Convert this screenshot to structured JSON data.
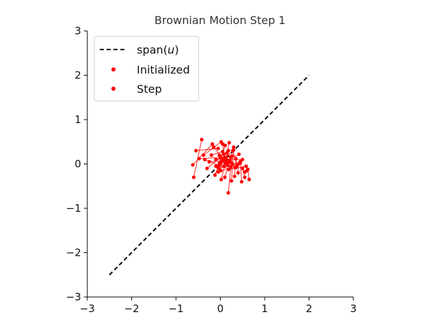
{
  "chart_data": {
    "type": "scatter",
    "title": "Brownian Motion Step 1",
    "xlabel": "",
    "ylabel": "",
    "xlim": [
      -3,
      3
    ],
    "ylim": [
      -3,
      3
    ],
    "xticks": [
      -3,
      -2,
      -1,
      0,
      1,
      2,
      3
    ],
    "yticks": [
      -3,
      -2,
      -1,
      0,
      1,
      2,
      3
    ],
    "xtick_labels": [
      "−3",
      "−2",
      "−1",
      "0",
      "1",
      "2",
      "3"
    ],
    "ytick_labels": [
      "−3",
      "−2",
      "−1",
      "0",
      "1",
      "2",
      "3"
    ],
    "grid": false,
    "legend_placement": "top-left",
    "colors": {
      "points": "#ff0000",
      "line": "#000000",
      "axis": "#000000"
    },
    "series": [
      {
        "name": "span(u)",
        "kind": "dashed-line",
        "x": [
          -2.5,
          2.0
        ],
        "y": [
          -2.5,
          2.0
        ]
      },
      {
        "name": "Initialized",
        "kind": "points",
        "x": [
          -0.42,
          -0.18,
          -0.05,
          0.02,
          0.05,
          0.08,
          0.11,
          0.14,
          0.18,
          0.22,
          0.26,
          0.3,
          0.35,
          0.4,
          0.45,
          0.5,
          0.55,
          0.62,
          -0.1,
          0.0,
          0.04,
          0.09,
          0.12,
          0.17,
          0.2,
          0.24,
          0.28,
          0.33,
          0.38,
          -0.03,
          0.01,
          0.06,
          0.1,
          0.15,
          0.19,
          0.23,
          -0.08,
          -0.02
        ],
        "y": [
          0.55,
          0.45,
          0.35,
          0.5,
          0.28,
          0.22,
          0.42,
          0.1,
          0.3,
          0.05,
          0.18,
          0.38,
          0.12,
          0.0,
          0.05,
          -0.1,
          -0.18,
          -0.12,
          0.1,
          0.0,
          0.06,
          -0.05,
          0.02,
          -0.02,
          0.08,
          -0.06,
          0.0,
          -0.08,
          -0.03,
          -0.1,
          -0.15,
          0.12,
          0.15,
          0.04,
          -0.12,
          0.16,
          -0.05,
          0.02
        ]
      },
      {
        "name": "Step",
        "kind": "points-with-segments",
        "x": [
          -0.6,
          -0.62,
          -0.55,
          -0.38,
          -0.2,
          -0.3,
          -0.12,
          -0.05,
          0.02,
          0.1,
          0.18,
          0.25,
          0.32,
          0.4,
          0.48,
          0.55,
          0.6,
          0.65,
          0.5,
          0.42,
          0.3,
          0.2,
          0.05,
          -0.15,
          -0.25,
          -0.1,
          0.0,
          0.15,
          0.28,
          0.45,
          0.58,
          0.35,
          0.12,
          -0.02,
          -0.35,
          -0.48
        ],
        "y": [
          -0.3,
          -0.02,
          0.3,
          0.2,
          0.2,
          -0.1,
          -0.25,
          -0.18,
          -0.35,
          -0.3,
          -0.65,
          -0.38,
          -0.28,
          -0.2,
          -0.4,
          -0.3,
          -0.15,
          -0.35,
          0.1,
          0.22,
          0.32,
          0.48,
          0.45,
          0.38,
          0.05,
          -0.05,
          0.15,
          0.25,
          0.3,
          0.02,
          -0.05,
          -0.08,
          0.08,
          0.2,
          0.1,
          0.12
        ]
      }
    ],
    "legend": [
      {
        "label_text": "span(",
        "label_italic": "u",
        "label_close": ")"
      },
      {
        "label": "Initialized"
      },
      {
        "label": "Step"
      }
    ]
  }
}
